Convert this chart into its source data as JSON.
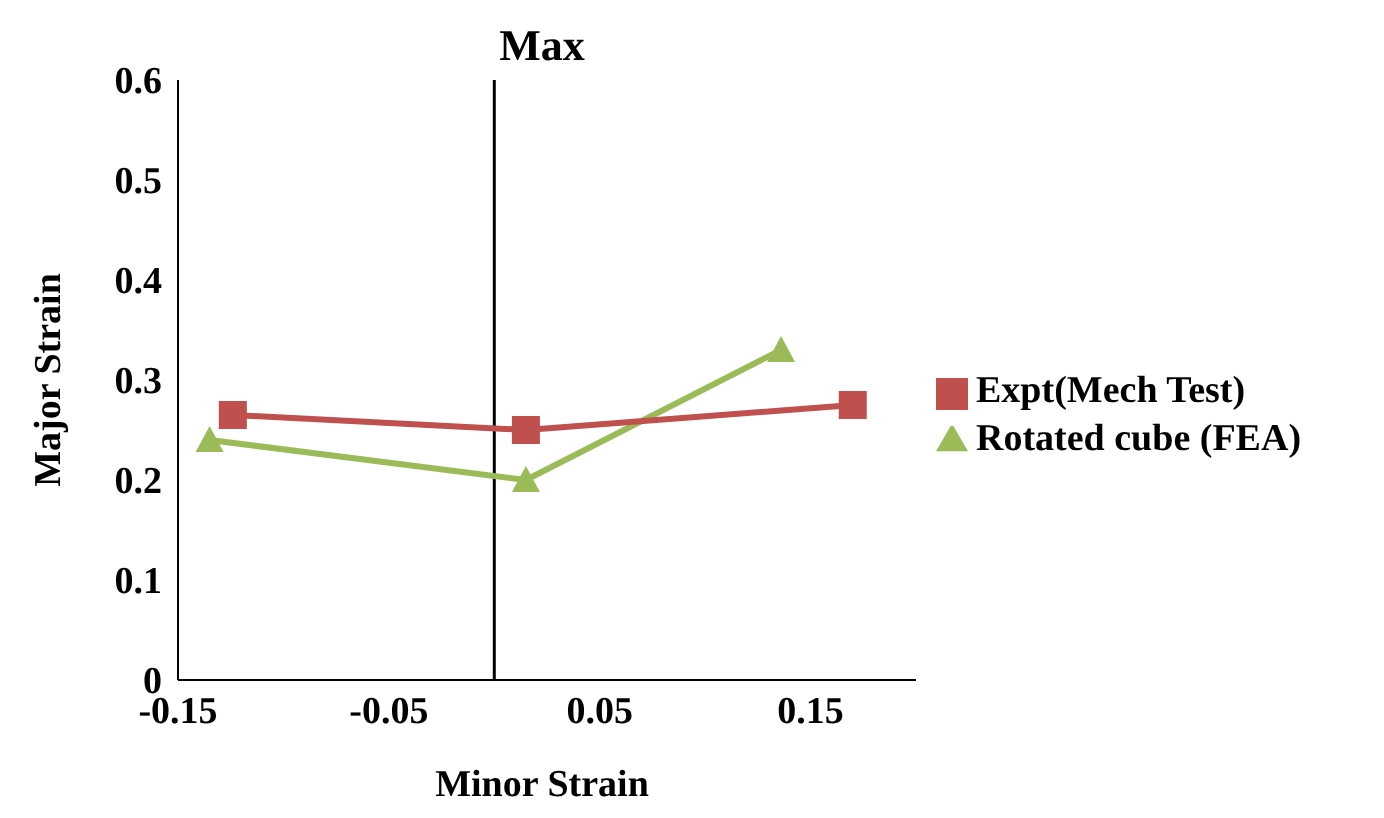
{
  "chart_data": {
    "type": "line",
    "title": "Max",
    "xlabel": "Minor Strain",
    "ylabel": "Major Strain",
    "series": [
      {
        "name": "Rotated cube (FEA)",
        "color": "#9bbb59",
        "marker": "triangle",
        "x": [
          -0.135,
          0.015,
          0.136
        ],
        "values": [
          0.24,
          0.2,
          0.33
        ]
      },
      {
        "name": "Expt(Mech Test)",
        "color": "#c0504d",
        "marker": "square",
        "x": [
          -0.124,
          0.015,
          0.17
        ],
        "values": [
          0.265,
          0.25,
          0.275
        ]
      }
    ],
    "xlim": [
      -0.15,
      0.2
    ],
    "xticks": [
      -0.15,
      -0.05,
      0.05,
      0.15
    ],
    "ylim": [
      0,
      0.6
    ],
    "yticks": [
      0,
      0.1,
      0.2,
      0.3,
      0.4,
      0.5,
      0.6
    ],
    "ref_lines": [
      {
        "axis": "x",
        "value": 0,
        "color": "#000000"
      }
    ],
    "grid": false,
    "legend": "right"
  }
}
